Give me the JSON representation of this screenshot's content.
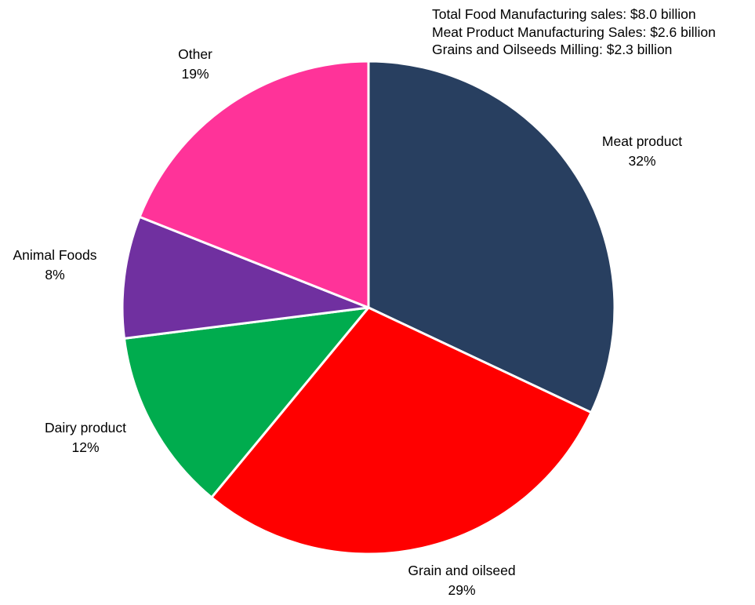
{
  "notes": [
    "Total Food Manufacturing sales: $8.0 billion",
    "Meat Product Manufacturing Sales: $2.6 billion",
    "Grains and Oilseeds Milling: $2.3 billion"
  ],
  "chart_data": {
    "type": "pie",
    "title": "",
    "slices": [
      {
        "label": "Meat product",
        "value": 32,
        "display": "32%",
        "color": "#283F60"
      },
      {
        "label": "Grain and oilseed",
        "value": 29,
        "display": "29%",
        "color": "#FF0000"
      },
      {
        "label": "Dairy product",
        "value": 12,
        "display": "12%",
        "color": "#00AC4E"
      },
      {
        "label": "Animal Foods",
        "value": 8,
        "display": "8%",
        "color": "#7030A0"
      },
      {
        "label": "Other",
        "value": 19,
        "display": "19%",
        "color": "#FF3399"
      }
    ],
    "start_angle": "12 o'clock",
    "direction": "clockwise",
    "slice_border_color": "#FFFFFF"
  }
}
